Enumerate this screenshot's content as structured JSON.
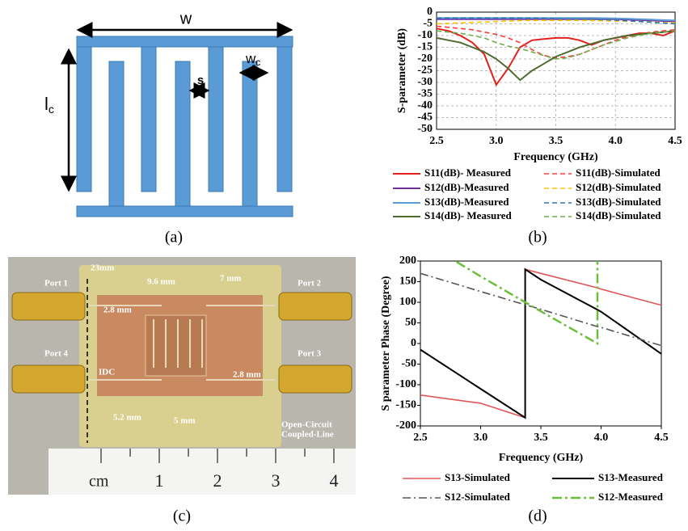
{
  "diagram": {
    "width_label": "w",
    "length_label": "l",
    "length_label_sub": "c",
    "gap_label": "s",
    "finger_label": "w",
    "finger_label_sub": "c",
    "caption": "(a)"
  },
  "photo": {
    "labels": [
      "Port 1",
      "Port 2",
      "Port 3",
      "Port 4",
      "23mm",
      "9.6 mm",
      "7 mm",
      "2.8 mm",
      "2.8 mm",
      "IDC",
      "5.2 mm",
      "5 mm",
      "Open-Circuit",
      "Coupled-Line"
    ],
    "ruler": [
      "cm",
      "1",
      "2",
      "3",
      "4"
    ],
    "caption": "(c)"
  },
  "chart_data": [
    {
      "type": "line",
      "caption": "(b)",
      "x_label": "Frequency (GHz)",
      "y_label": "S-parameter (dB)",
      "x": [
        2.5,
        2.6,
        2.7,
        2.8,
        2.9,
        3.0,
        3.1,
        3.2,
        3.3,
        3.4,
        3.5,
        3.6,
        3.7,
        3.8,
        3.9,
        4.0,
        4.1,
        4.2,
        4.3,
        4.4,
        4.5
      ],
      "xlim": [
        2.5,
        4.5
      ],
      "xticks": [
        2.5,
        {
          "value": 3,
          "label": "3.0"
        },
        3.5,
        {
          "value": 4,
          "label": "4.0"
        },
        4.5
      ],
      "ylim": [
        -50,
        0
      ],
      "yticks": [
        -50,
        -45,
        -40,
        -35,
        -30,
        -25,
        -20,
        -15,
        -10,
        -5,
        0
      ],
      "grid": true,
      "series": [
        {
          "name": "S11(dB)- Measured",
          "color": "#e3211c",
          "dash": "solid",
          "values": [
            -7,
            -8,
            -10,
            -13,
            -18,
            -31,
            -24,
            -15,
            -12,
            -11.5,
            -11,
            -11,
            -12,
            -14,
            -12,
            -11,
            -10,
            -9,
            -9,
            -10,
            -8
          ]
        },
        {
          "name": "S11(dB)-Simulated",
          "color": "#ff3b3b",
          "dash": "dashed",
          "values": [
            -6,
            -6.5,
            -7,
            -7.5,
            -8.5,
            -9.5,
            -11,
            -13,
            -16,
            -18.5,
            -19.5,
            -19,
            -18,
            -16,
            -14,
            -12,
            -10.5,
            -9.5,
            -8.5,
            -8,
            -7.5
          ]
        },
        {
          "name": "S12(dB)-Measured",
          "color": "#7030a0",
          "dash": "solid",
          "values": [
            -3,
            -3,
            -3,
            -3,
            -3,
            -3,
            -3,
            -3,
            -3,
            -3,
            -3,
            -3,
            -3,
            -3,
            -3,
            -3,
            -3.2,
            -3.4,
            -3.6,
            -3.8,
            -4
          ]
        },
        {
          "name": "S12(dB)-Simulated",
          "color": "#ffc000",
          "dash": "dashed",
          "values": [
            -5,
            -4.8,
            -4.6,
            -4.4,
            -4.2,
            -4,
            -3.8,
            -3.6,
            -3.5,
            -3.5,
            -3.5,
            -3.5,
            -3.5,
            -3.6,
            -3.7,
            -3.8,
            -3.9,
            -4,
            -4.2,
            -4.4,
            -4.5
          ]
        },
        {
          "name": "S13(dB)-Measured",
          "color": "#5b9bd5",
          "dash": "solid",
          "values": [
            -2.5,
            -2.5,
            -2.5,
            -2.5,
            -2.5,
            -2.5,
            -2.5,
            -2.5,
            -2.5,
            -2.5,
            -2.5,
            -2.5,
            -2.5,
            -2.5,
            -2.6,
            -2.7,
            -2.8,
            -3,
            -3.2,
            -3.4,
            -3.5
          ]
        },
        {
          "name": "S13(dB)-Simulated",
          "color": "#2e75b6",
          "dash": "dashed",
          "values": [
            -2.5,
            -2.5,
            -2.5,
            -2.5,
            -2.5,
            -2.5,
            -2.5,
            -2.5,
            -2.6,
            -2.7,
            -2.8,
            -2.9,
            -3,
            -3,
            -3.2,
            -3.4,
            -3.7,
            -4,
            -4.3,
            -4.7,
            -5
          ]
        },
        {
          "name": "S14(dB)- Measured",
          "color": "#4e6b2f",
          "dash": "solid",
          "values": [
            -11,
            -12,
            -13,
            -15,
            -17,
            -20,
            -24,
            -29,
            -25,
            -22,
            -19,
            -17,
            -15,
            -13.5,
            -12,
            -11,
            -10,
            -9.5,
            -9,
            -8.5,
            -8
          ]
        },
        {
          "name": "S14(dB)-Simulated",
          "color": "#70ad47",
          "dash": "dashed",
          "values": [
            -8,
            -8.5,
            -9,
            -10,
            -11,
            -13,
            -14.5,
            -15.5,
            -17,
            -18.5,
            -20,
            -19.5,
            -18,
            -16,
            -14,
            -12.5,
            -11,
            -10,
            -9,
            -8.5,
            -8
          ]
        }
      ]
    },
    {
      "type": "line",
      "caption": "(d)",
      "x_label": "Frequency (GHz)",
      "y_label": "S parameter Phase (Degree)",
      "x": [
        2.5,
        2.8,
        3.0,
        3.37,
        3.37,
        3.5,
        3.97,
        3.97,
        4.0,
        4.5
      ],
      "xlim": [
        2.5,
        4.5
      ],
      "xticks": [
        2.5,
        {
          "value": 3,
          "label": "3.0"
        },
        3.5,
        {
          "value": 4,
          "label": "4.0"
        },
        4.5
      ],
      "ylim": [
        -200,
        200
      ],
      "yticks": [
        -200,
        -150,
        -100,
        -50,
        0,
        50,
        100,
        150,
        200
      ],
      "grid": false,
      "series": [
        {
          "name": "S13-Simulated",
          "color": "#e0575a",
          "dash": "double",
          "values": [
            -125,
            -137,
            -145,
            -180,
            180,
            170,
            135,
            135,
            132,
            93
          ]
        },
        {
          "name": "S13-Measured",
          "color": "#000000",
          "dash": "solid",
          "values": [
            -15,
            -72,
            -110,
            -180,
            180,
            155,
            82,
            82,
            77,
            -25
          ]
        },
        {
          "name": "S12-Simulated",
          "color": "#555555",
          "dash": "dash-dot",
          "values": [
            170,
            144,
            126,
            94,
            94,
            83,
            41,
            41,
            39,
            -5
          ]
        },
        {
          "name": "S12-Measured",
          "color": "#6cbf3a",
          "dash": "dash-dot-thick",
          "values": [
            null,
            198,
            163,
            100,
            100,
            78,
            0,
            200,
            null,
            null
          ]
        }
      ]
    }
  ]
}
